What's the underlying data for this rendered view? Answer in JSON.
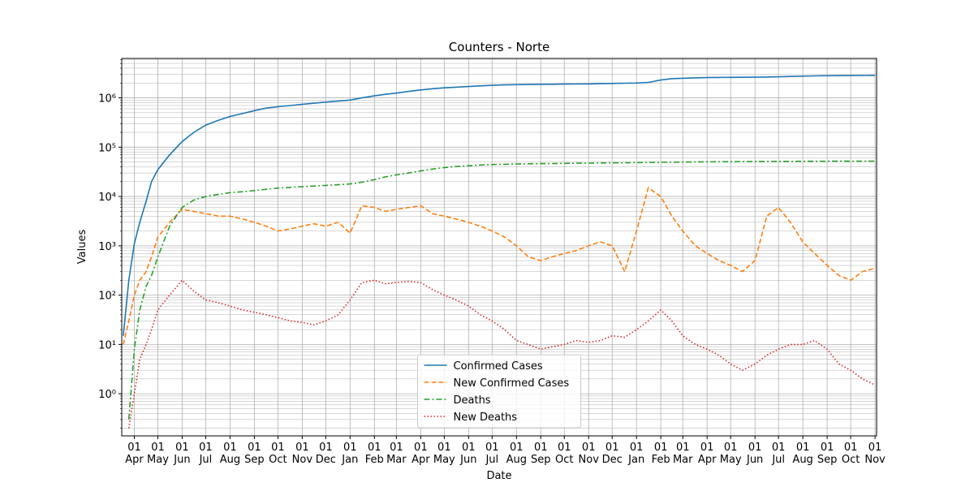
{
  "chart_data": {
    "type": "line",
    "title": "Counters - Norte",
    "x_label": "Date",
    "y_label": "Values",
    "log_y": true,
    "grid": true,
    "minor_grid": true,
    "legend": "lower center",
    "xlim": [
      -16,
      946
    ],
    "ylim": [
      0.14,
      6300000
    ],
    "xticks": [
      {
        "value": 0,
        "label": "01 Apr"
      },
      {
        "value": 30,
        "label": "01 May"
      },
      {
        "value": 61,
        "label": "01 Jun"
      },
      {
        "value": 91,
        "label": "01 Jul"
      },
      {
        "value": 122,
        "label": "01 Aug"
      },
      {
        "value": 153,
        "label": "01 Sep"
      },
      {
        "value": 183,
        "label": "01 Oct"
      },
      {
        "value": 214,
        "label": "01 Nov"
      },
      {
        "value": 244,
        "label": "01 Dec"
      },
      {
        "value": 275,
        "label": "01 Jan"
      },
      {
        "value": 306,
        "label": "01 Feb"
      },
      {
        "value": 334,
        "label": "01 Mar"
      },
      {
        "value": 365,
        "label": "01 Apr"
      },
      {
        "value": 395,
        "label": "01 May"
      },
      {
        "value": 426,
        "label": "01 Jun"
      },
      {
        "value": 456,
        "label": "01 Jul"
      },
      {
        "value": 487,
        "label": "01 Aug"
      },
      {
        "value": 518,
        "label": "01 Sep"
      },
      {
        "value": 548,
        "label": "01 Oct"
      },
      {
        "value": 579,
        "label": "01 Nov"
      },
      {
        "value": 609,
        "label": "01 Dec"
      },
      {
        "value": 640,
        "label": "01 Jan"
      },
      {
        "value": 671,
        "label": "01 Feb"
      },
      {
        "value": 699,
        "label": "01 Mar"
      },
      {
        "value": 730,
        "label": "01 Apr"
      },
      {
        "value": 760,
        "label": "01 May"
      },
      {
        "value": 791,
        "label": "01 Jun"
      },
      {
        "value": 821,
        "label": "01 Jul"
      },
      {
        "value": 852,
        "label": "01 Aug"
      },
      {
        "value": 883,
        "label": "01 Sep"
      },
      {
        "value": 913,
        "label": "01 Oct"
      },
      {
        "value": 944,
        "label": "01 Nov"
      }
    ],
    "yticks": [
      {
        "value": 1,
        "label": "10⁰"
      },
      {
        "value": 10,
        "label": "10¹"
      },
      {
        "value": 100,
        "label": "10²"
      },
      {
        "value": 1000,
        "label": "10³"
      },
      {
        "value": 10000,
        "label": "10⁴"
      },
      {
        "value": 100000,
        "label": "10⁵"
      },
      {
        "value": 1000000,
        "label": "10⁶"
      }
    ],
    "x": [
      -14,
      -7,
      0,
      7,
      15,
      22,
      30,
      45,
      61,
      76,
      91,
      107,
      122,
      138,
      153,
      168,
      183,
      199,
      214,
      229,
      244,
      260,
      275,
      290,
      306,
      320,
      334,
      350,
      365,
      380,
      395,
      410,
      426,
      441,
      456,
      472,
      487,
      502,
      518,
      533,
      548,
      563,
      579,
      594,
      609,
      625,
      640,
      655,
      671,
      685,
      699,
      715,
      730,
      745,
      760,
      775,
      791,
      806,
      821,
      836,
      852,
      867,
      883,
      898,
      913,
      928,
      944
    ],
    "series": [
      {
        "name": "Confirmed Cases",
        "color": "#1f77b4",
        "dash": "solid",
        "values": [
          15,
          200,
          1100,
          3000,
          8000,
          20000,
          35000,
          70000,
          130000,
          200000,
          280000,
          350000,
          420000,
          480000,
          550000,
          620000,
          660000,
          700000,
          740000,
          780000,
          820000,
          860000,
          900000,
          1000000,
          1100000,
          1180000,
          1250000,
          1350000,
          1450000,
          1530000,
          1600000,
          1650000,
          1700000,
          1750000,
          1800000,
          1830000,
          1850000,
          1870000,
          1880000,
          1890000,
          1900000,
          1910000,
          1920000,
          1940000,
          1960000,
          1980000,
          2000000,
          2050000,
          2300000,
          2450000,
          2500000,
          2550000,
          2580000,
          2600000,
          2610000,
          2620000,
          2630000,
          2650000,
          2680000,
          2720000,
          2760000,
          2790000,
          2810000,
          2820000,
          2830000,
          2840000,
          2850000
        ]
      },
      {
        "name": "New Confirmed Cases",
        "color": "#ff7f0e",
        "dash": "dashed",
        "values": [
          10,
          30,
          100,
          200,
          300,
          600,
          1500,
          3000,
          5500,
          5000,
          4500,
          4000,
          4000,
          3500,
          3000,
          2500,
          2000,
          2200,
          2500,
          2800,
          2500,
          3000,
          1800,
          6500,
          6000,
          5000,
          5500,
          6000,
          6500,
          4500,
          4000,
          3500,
          3000,
          2500,
          2000,
          1500,
          1000,
          600,
          500,
          600,
          700,
          800,
          1000,
          1200,
          1000,
          300,
          2000,
          15000,
          10000,
          4000,
          2000,
          1000,
          700,
          500,
          400,
          300,
          500,
          4000,
          6000,
          3000,
          1200,
          700,
          400,
          250,
          200,
          300,
          350
        ]
      },
      {
        "name": "Deaths",
        "color": "#2ca02c",
        "dash": "dashdot",
        "values": [
          null,
          0.3,
          8,
          50,
          150,
          250,
          600,
          2500,
          6000,
          8500,
          10000,
          11000,
          12000,
          12500,
          13200,
          14000,
          14800,
          15300,
          15800,
          16300,
          16800,
          17300,
          18000,
          19500,
          22000,
          25000,
          27500,
          30000,
          33000,
          36000,
          38500,
          40500,
          42000,
          43500,
          44500,
          45000,
          45500,
          46000,
          46300,
          46600,
          46900,
          47200,
          47500,
          47800,
          48100,
          48400,
          48700,
          49000,
          49300,
          49600,
          49900,
          50200,
          50400,
          50600,
          50800,
          51000,
          51200,
          51400,
          51500,
          51600,
          51700,
          51800,
          51900,
          52000,
          52000,
          52100,
          52200
        ]
      },
      {
        "name": "New Deaths",
        "color": "#d62728",
        "dash": "dotted",
        "values": [
          null,
          0.2,
          1,
          5,
          10,
          20,
          50,
          100,
          200,
          120,
          80,
          70,
          60,
          50,
          45,
          40,
          35,
          30,
          28,
          25,
          30,
          40,
          80,
          180,
          200,
          170,
          180,
          190,
          180,
          130,
          100,
          80,
          60,
          40,
          30,
          20,
          12,
          10,
          8,
          9,
          10,
          12,
          11,
          12,
          15,
          14,
          20,
          30,
          50,
          30,
          15,
          10,
          8,
          6,
          4,
          3,
          4,
          6,
          8,
          10,
          10,
          12,
          8,
          4,
          3,
          2,
          1.5
        ]
      }
    ]
  }
}
